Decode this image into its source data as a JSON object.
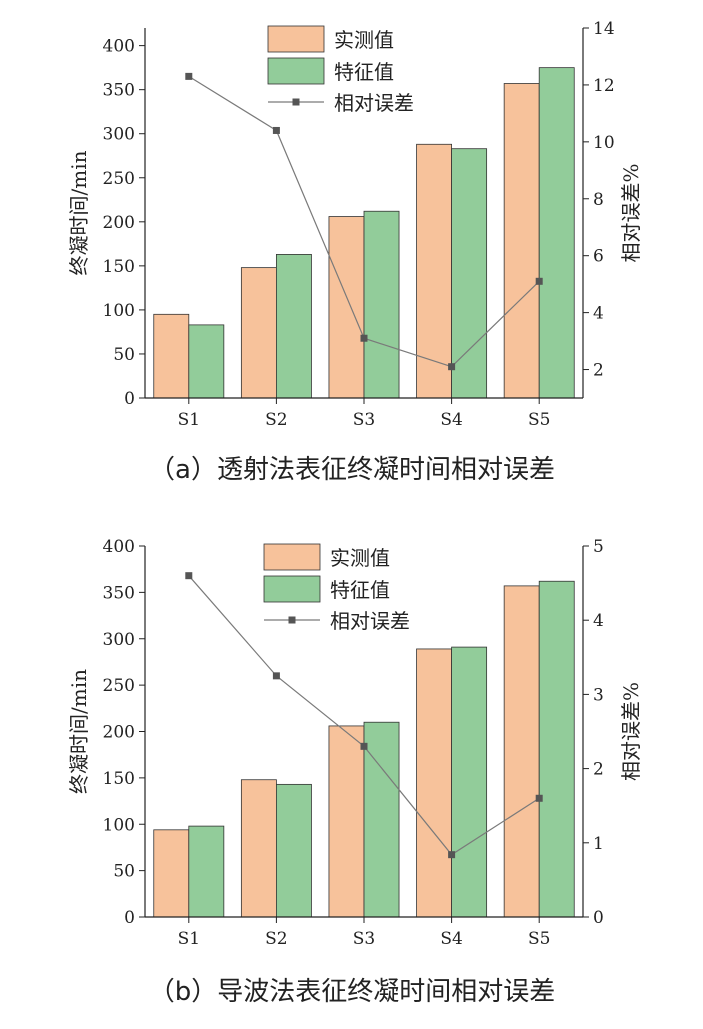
{
  "chart_data": [
    {
      "type": "bar",
      "title": "",
      "caption": "（a）透射法表征终凝时间相对误差",
      "categories": [
        "S1",
        "S2",
        "S3",
        "S4",
        "S5"
      ],
      "series": [
        {
          "name": "实测值",
          "kind": "bar",
          "axis": "left",
          "values": [
            95,
            148,
            206,
            288,
            357
          ]
        },
        {
          "name": "特征值",
          "kind": "bar",
          "axis": "left",
          "values": [
            83,
            163,
            212,
            283,
            375
          ]
        },
        {
          "name": "相对误差",
          "kind": "line",
          "axis": "right",
          "values": [
            12.3,
            10.4,
            3.1,
            2.1,
            5.1
          ]
        }
      ],
      "ylabel": "终凝时间/min",
      "ylim": [
        0,
        420
      ],
      "yticks": [
        0,
        50,
        100,
        150,
        200,
        250,
        300,
        350,
        400
      ],
      "y2label": "相对误差%",
      "y2lim": [
        1,
        14
      ],
      "y2ticks": [
        2,
        4,
        6,
        8,
        10,
        12,
        14
      ],
      "legend": "top-center",
      "grid": false
    },
    {
      "type": "bar",
      "title": "",
      "caption": "（b）导波法表征终凝时间相对误差",
      "categories": [
        "S1",
        "S2",
        "S3",
        "S4",
        "S5"
      ],
      "series": [
        {
          "name": "实测值",
          "kind": "bar",
          "axis": "left",
          "values": [
            94,
            148,
            206,
            289,
            357
          ]
        },
        {
          "name": "特征值",
          "kind": "bar",
          "axis": "left",
          "values": [
            98,
            143,
            210,
            291,
            362
          ]
        },
        {
          "name": "相对误差",
          "kind": "line",
          "axis": "right",
          "values": [
            4.6,
            3.25,
            2.3,
            0.84,
            1.6
          ]
        }
      ],
      "ylabel": "终凝时间/min",
      "ylim": [
        0,
        400
      ],
      "yticks": [
        0,
        50,
        100,
        150,
        200,
        250,
        300,
        350,
        400
      ],
      "y2label": "相对误差%",
      "y2lim": [
        0,
        5
      ],
      "y2ticks": [
        0,
        1,
        2,
        3,
        4,
        5
      ],
      "legend": "top-center",
      "grid": false
    }
  ],
  "colors": {
    "measured": "#F7C29B",
    "feature": "#92CC9A",
    "error_line": "#7A7A7A",
    "error_marker": "#555555"
  }
}
